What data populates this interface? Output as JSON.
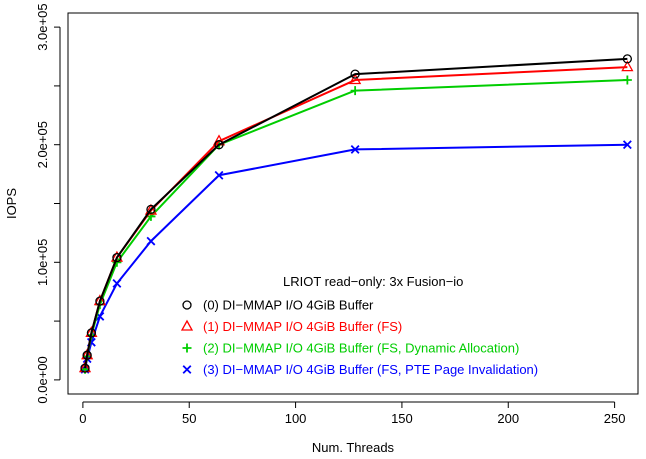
{
  "chart_data": {
    "type": "line",
    "xlabel": "Num. Threads",
    "ylabel": "IOPS",
    "xlim": [
      -7,
      261
    ],
    "ylim": [
      -12000,
      312000
    ],
    "x_ticks": [
      0,
      50,
      100,
      150,
      200,
      250
    ],
    "x_tick_labels": [
      "0",
      "50",
      "100",
      "150",
      "200",
      "250"
    ],
    "y_ticks": [
      0,
      50000,
      100000,
      150000,
      200000,
      250000,
      300000
    ],
    "y_tick_labels": [
      "0.0e+00",
      "",
      "1.0e+05",
      "",
      "2.0e+05",
      "",
      "3.0e+05"
    ],
    "legend_title": "LRIOT read−only: 3x Fusion−io",
    "legend_position": "bottom-right",
    "x": [
      1,
      2,
      4,
      8,
      16,
      32,
      64,
      128,
      256
    ],
    "series": [
      {
        "name": "(0)  DI−MMAP I/O 4GiB Buffer",
        "color": "#000000",
        "marker": "circle",
        "values": [
          10000,
          21000,
          40000,
          67000,
          104000,
          145000,
          200000,
          260000,
          273000
        ]
      },
      {
        "name": "(1)  DI−MMAP I/O 4GiB Buffer (FS)",
        "color": "#ff0000",
        "marker": "triangle",
        "values": [
          10000,
          21000,
          40000,
          67000,
          104000,
          144000,
          203000,
          255000,
          266000
        ]
      },
      {
        "name": "(2)  DI−MMAP I/O 4GiB Buffer (FS, Dynamic Allocation)",
        "color": "#00cd00",
        "marker": "plus",
        "values": [
          9000,
          20000,
          38000,
          64000,
          100000,
          139000,
          200000,
          246000,
          255000
        ]
      },
      {
        "name": "(3)  DI−MMAP I/O 4GiB Buffer (FS, PTE Page Invalidation)",
        "color": "#0000ff",
        "marker": "cross",
        "values": [
          9000,
          18000,
          32000,
          54000,
          82000,
          118000,
          174000,
          196000,
          200000
        ]
      }
    ]
  }
}
